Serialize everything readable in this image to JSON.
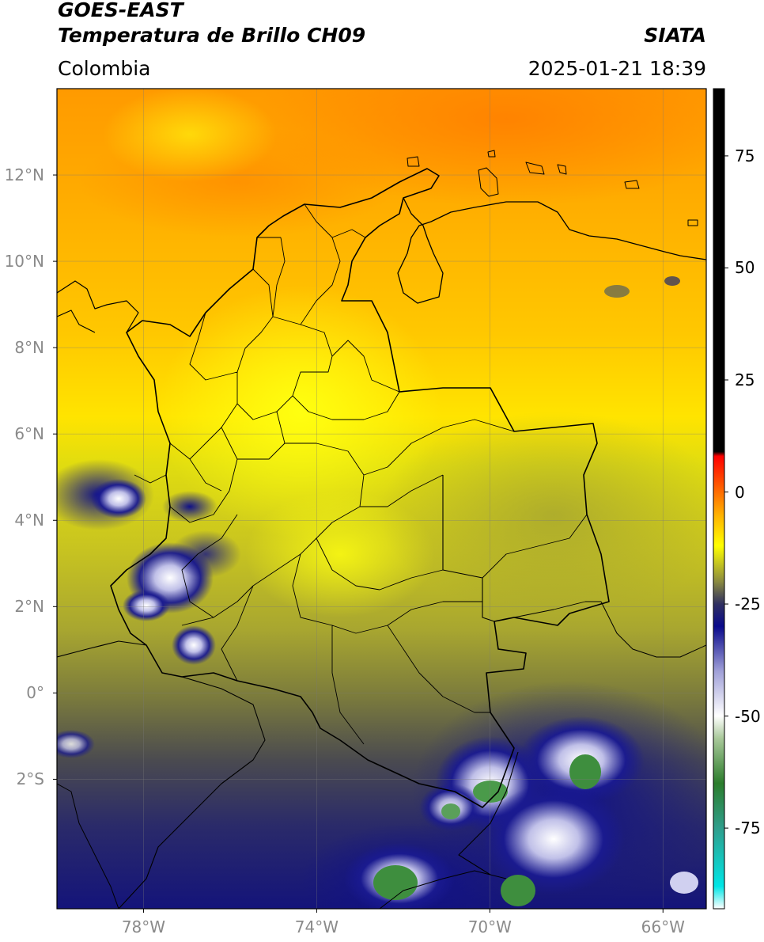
{
  "header": {
    "satellite": "GOES-EAST",
    "product": "Temperatura de Brillo CH09",
    "organization": "SIATA",
    "region": "Colombia",
    "timestamp": "2025-01-21 18:39"
  },
  "map": {
    "lon_range": [
      -80,
      -65
    ],
    "lat_range": [
      -5,
      14
    ],
    "lat_ticks": [
      {
        "value": 12,
        "label": "12°N"
      },
      {
        "value": 10,
        "label": "10°N"
      },
      {
        "value": 8,
        "label": "8°N"
      },
      {
        "value": 6,
        "label": "6°N"
      },
      {
        "value": 4,
        "label": "4°N"
      },
      {
        "value": 2,
        "label": "2°N"
      },
      {
        "value": 0,
        "label": "0°"
      },
      {
        "value": -2,
        "label": "2°S"
      }
    ],
    "lon_ticks": [
      {
        "value": -78,
        "label": "78°W"
      },
      {
        "value": -74,
        "label": "74°W"
      },
      {
        "value": -70,
        "label": "70°W"
      },
      {
        "value": -66,
        "label": "66°W"
      }
    ],
    "grid": true
  },
  "colorbar": {
    "range": [
      -93,
      90
    ],
    "ticks": [
      {
        "value": 75,
        "label": "75"
      },
      {
        "value": 50,
        "label": "50"
      },
      {
        "value": 25,
        "label": "25"
      },
      {
        "value": 0,
        "label": "0"
      },
      {
        "value": -25,
        "label": "-25"
      },
      {
        "value": -50,
        "label": "-50"
      },
      {
        "value": -75,
        "label": "-75"
      }
    ],
    "stops": [
      {
        "value": -93,
        "color": "#ffffff"
      },
      {
        "value": -88,
        "color": "#00e6e6"
      },
      {
        "value": -75,
        "color": "#2f9e8c"
      },
      {
        "value": -65,
        "color": "#2c7d2c"
      },
      {
        "value": -55,
        "color": "#a9c99a"
      },
      {
        "value": -50,
        "color": "#ffffff"
      },
      {
        "value": -40,
        "color": "#a0a0d8"
      },
      {
        "value": -30,
        "color": "#0a0a8c"
      },
      {
        "value": -25,
        "color": "#303060"
      },
      {
        "value": -20,
        "color": "#8a8a40"
      },
      {
        "value": -12,
        "color": "#ffff00"
      },
      {
        "value": -5,
        "color": "#ffb000"
      },
      {
        "value": 8,
        "color": "#ff0000"
      },
      {
        "value": 9,
        "color": "#000000"
      },
      {
        "value": 90,
        "color": "#000000"
      }
    ]
  }
}
